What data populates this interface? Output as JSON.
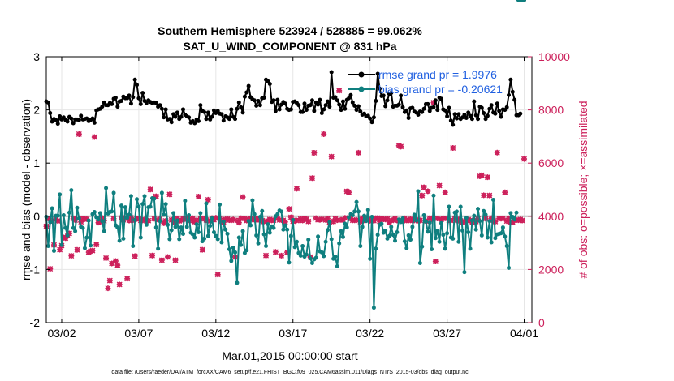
{
  "chart_data": {
    "type": "line",
    "title_line1": "Southern Hemisphere 523924 / 528885 = 99.062%",
    "title_line2": "SAT_U_WIND_COMPONENT @ 831 hPa",
    "xlabel": "Mar.01,2015 00:00:00 start",
    "ylabel_left": "rmse and bias (model - observation)",
    "ylabel_right": "# of obs: o=possible; ×=assimilated",
    "footnote": "data file: /Users/raeder/DAI/ATM_forcXX/CAM6_setup/f.e21.FHIST_BGC.f09_025.CAM6assim.011/Diags_NTrS_2015-03/obs_diag_output.nc",
    "xlim": [
      0,
      31.5
    ],
    "ylim_left": [
      -2,
      3
    ],
    "ylim_right": [
      0,
      10000
    ],
    "xticks": [
      {
        "x": 1.0,
        "label": "03/02"
      },
      {
        "x": 6.0,
        "label": "03/07"
      },
      {
        "x": 11.0,
        "label": "03/12"
      },
      {
        "x": 16.0,
        "label": "03/17"
      },
      {
        "x": 21.0,
        "label": "03/22"
      },
      {
        "x": 26.0,
        "label": "03/27"
      },
      {
        "x": 31.0,
        "label": "04/01"
      }
    ],
    "yticks_left": [
      {
        "v": -2,
        "label": "-2"
      },
      {
        "v": -1,
        "label": "-1"
      },
      {
        "v": 0,
        "label": "0"
      },
      {
        "v": 1,
        "label": "1"
      },
      {
        "v": 2,
        "label": "2"
      },
      {
        "v": 3,
        "label": "3"
      }
    ],
    "yticks_right": [
      {
        "v": 0,
        "label": "0"
      },
      {
        "v": 2000,
        "label": "2000"
      },
      {
        "v": 4000,
        "label": "4000"
      },
      {
        "v": 6000,
        "label": "6000"
      },
      {
        "v": 8000,
        "label": "8000"
      },
      {
        "v": 10000,
        "label": "10000"
      }
    ],
    "legend": [
      {
        "name": "rmse grand pr = 1.9976",
        "color": "#000000"
      },
      {
        "name": "bias grand pr = -0.20621",
        "color": "#0f7f7f"
      }
    ],
    "colors": {
      "rmse": "#000000",
      "bias": "#0f7f7f",
      "obs": "#cc1f5a",
      "zero_line": "#bbbbbb"
    },
    "x": [
      0.0,
      0.125,
      0.25,
      0.375,
      0.5,
      0.625,
      0.75,
      0.875,
      1.0,
      1.125,
      1.25,
      1.375,
      1.5,
      1.625,
      1.75,
      1.875,
      2.0,
      2.125,
      2.25,
      2.375,
      2.5,
      2.625,
      2.75,
      2.875,
      3.0,
      3.125,
      3.25,
      3.375,
      3.5,
      3.625,
      3.75,
      3.875,
      4.0,
      4.125,
      4.25,
      4.375,
      4.5,
      4.625,
      4.75,
      4.875,
      5.0,
      5.125,
      5.25,
      5.375,
      5.5,
      5.625,
      5.75,
      5.875,
      6.0,
      6.125,
      6.25,
      6.375,
      6.5,
      6.625,
      6.75,
      6.875,
      7.0,
      7.125,
      7.25,
      7.375,
      7.5,
      7.625,
      7.75,
      7.875,
      8.0,
      8.125,
      8.25,
      8.375,
      8.5,
      8.625,
      8.75,
      8.875,
      9.0,
      9.125,
      9.25,
      9.375,
      9.5,
      9.625,
      9.75,
      9.875,
      10.0,
      10.125,
      10.25,
      10.375,
      10.5,
      10.625,
      10.75,
      10.875,
      11.0,
      11.125,
      11.25,
      11.375,
      11.5,
      11.625,
      11.75,
      11.875,
      12.0,
      12.125,
      12.25,
      12.375,
      12.5,
      12.625,
      12.75,
      12.875,
      13.0,
      13.125,
      13.25,
      13.375,
      13.5,
      13.625,
      13.75,
      13.875,
      14.0,
      14.125,
      14.25,
      14.375,
      14.5,
      14.625,
      14.75,
      14.875,
      15.0,
      15.125,
      15.25,
      15.375,
      15.5,
      15.625,
      15.75,
      15.875,
      16.0,
      16.125,
      16.25,
      16.375,
      16.5,
      16.625,
      16.75,
      16.875,
      17.0,
      17.125,
      17.25,
      17.375,
      17.5,
      17.625,
      17.75,
      17.875,
      18.0,
      18.125,
      18.25,
      18.375,
      18.5,
      18.625,
      18.75,
      18.875,
      19.0,
      19.125,
      19.25,
      19.375,
      19.5,
      19.625,
      19.75,
      19.875,
      20.0,
      20.125,
      20.25,
      20.375,
      20.5,
      20.625,
      20.75,
      20.875,
      21.0,
      21.125,
      21.25,
      21.375,
      21.5,
      21.625,
      21.75,
      21.875,
      22.0,
      22.125,
      22.25,
      22.375,
      22.5,
      22.625,
      22.75,
      22.875,
      23.0,
      23.125,
      23.25,
      23.375,
      23.5,
      23.625,
      23.75,
      23.875,
      24.0,
      24.125,
      24.25,
      24.375,
      24.5,
      24.625,
      24.75,
      24.875,
      25.0,
      25.125,
      25.25,
      25.375,
      25.5,
      25.625,
      25.75,
      25.875,
      26.0,
      26.125,
      26.25,
      26.375,
      26.5,
      26.625,
      26.75,
      26.875,
      27.0,
      27.125,
      27.25,
      27.375,
      27.5,
      27.625,
      27.75,
      27.875,
      28.0,
      28.125,
      28.25,
      28.375,
      28.5,
      28.625,
      28.75,
      28.875,
      29.0,
      29.125,
      29.25,
      29.375,
      29.5,
      29.625,
      29.75,
      29.875,
      30.0,
      30.125,
      30.25,
      30.375,
      30.5,
      30.625,
      30.75,
      30.875,
      31.0
    ],
    "rmse": [
      2.16,
      2.14,
      1.94,
      1.78,
      1.83,
      1.81,
      1.74,
      1.88,
      1.82,
      1.86,
      1.81,
      1.78,
      1.87,
      1.84,
      1.75,
      1.82,
      1.82,
      1.81,
      1.89,
      1.82,
      1.83,
      1.84,
      1.79,
      1.81,
      1.84,
      1.76,
      1.99,
      2.01,
      2.02,
      2.06,
      2.14,
      2.09,
      2.09,
      2.13,
      2.11,
      2.21,
      2.23,
      2.06,
      2.16,
      2.17,
      2.25,
      2.22,
      2.22,
      2.27,
      2.12,
      2.24,
      2.57,
      2.47,
      2.22,
      2.11,
      2.32,
      2.17,
      2.13,
      2.18,
      2.15,
      2.13,
      2.14,
      2.13,
      2.06,
      2.09,
      2.02,
      1.86,
      2.01,
      1.82,
      1.83,
      1.77,
      1.92,
      1.87,
      1.95,
      1.83,
      1.87,
      2.01,
      1.91,
      1.88,
      1.86,
      1.76,
      1.79,
      1.75,
      1.82,
      1.79,
      2.09,
      1.98,
      1.96,
      1.83,
      1.95,
      1.82,
      1.87,
      1.99,
      1.94,
      1.98,
      1.93,
      1.92,
      1.8,
      1.88,
      1.86,
      1.83,
      2.01,
      1.87,
      1.83,
      2.02,
      2.14,
      2.05,
      1.95,
      2.25,
      2.33,
      2.45,
      2.24,
      2.2,
      2.18,
      2.08,
      2.17,
      2.09,
      2.22,
      2.23,
      2.57,
      2.54,
      2.49,
      2.15,
      2.18,
      1.98,
      2.19,
      2.01,
      2.1,
      2.15,
      2.12,
      2.02,
      2.0,
      2.01,
      2.15,
      2.16,
      2.13,
      2.09,
      1.96,
      1.96,
      2.12,
      2.0,
      2.08,
      2.09,
      2.18,
      1.98,
      2.14,
      2.1,
      2.19,
      1.94,
      2.01,
      2.09,
      2.16,
      2.06,
      2.71,
      2.23,
      2.24,
      2.18,
      2.1,
      2.0,
      2.16,
      2.02,
      2.19,
      2.22,
      2.28,
      2.14,
      2.08,
      2.0,
      2.07,
      1.97,
      1.91,
      1.93,
      1.88,
      1.89,
      1.84,
      1.77,
      1.86,
      2.17,
      2.68,
      2.4,
      2.26,
      2.27,
      2.07,
      2.18,
      2.3,
      2.32,
      2.06,
      2.08,
      2.08,
      2.1,
      2.27,
      2.05,
      1.96,
      1.99,
      1.85,
      2.03,
      2.04,
      1.97,
      1.95,
      1.91,
      1.97,
      1.96,
      2.02,
      2.11,
      2.11,
      1.98,
      2.04,
      2.05,
      2.18,
      2.0,
      2.23,
      2.21,
      2.01,
      1.99,
      1.88,
      2.04,
      1.8,
      1.72,
      1.92,
      1.84,
      1.92,
      1.83,
      1.86,
      1.91,
      1.85,
      1.95,
      1.89,
      1.83,
      2.16,
      1.9,
      1.83,
      2.06,
      2.04,
      1.94,
      1.83,
      1.89,
      2.02,
      2.09,
      1.95,
      1.93,
      2.12,
      1.98,
      1.87,
      2.01,
      2.0,
      2.05,
      2.28,
      2.57,
      2.34,
      2.19,
      1.9,
      1.9,
      1.93
    ],
    "bias": [
      -0.01,
      -0.56,
      -0.11,
      0.15,
      -0.65,
      0.01,
      0.01,
      0.41,
      -0.54,
      0.02,
      -0.22,
      -0.36,
      0.07,
      0.49,
      -0.22,
      -0.28,
      0.16,
      -0.04,
      -0.2,
      -0.22,
      -0.6,
      -0.4,
      -0.08,
      -0.55,
      0.04,
      0.08,
      -0.02,
      -0.06,
      0.06,
      -0.09,
      -0.28,
      0.53,
      0.05,
      0.08,
      0.09,
      0.44,
      -0.17,
      -0.21,
      -0.46,
      0.2,
      -0.42,
      0.17,
      -0.03,
      0.03,
      0.38,
      -0.56,
      -0.07,
      0.32,
      0.18,
      -0.4,
      0.23,
      0.38,
      -0.16,
      0.17,
      0.18,
      0.34,
      0.33,
      -0.21,
      -0.61,
      -0.09,
      0.44,
      0.03,
      0.23,
      -0.16,
      -0.43,
      -0.26,
      0.06,
      -0.2,
      -0.08,
      -0.43,
      -0.21,
      -0.33,
      0.29,
      -0.2,
      0.02,
      -0.31,
      -0.34,
      -0.4,
      -0.15,
      -0.3,
      0.06,
      -0.47,
      -0.42,
      0.24,
      -0.37,
      -0.18,
      -0.04,
      -0.3,
      -0.37,
      -0.43,
      0.22,
      -0.49,
      -0.1,
      -0.25,
      -0.33,
      -0.62,
      -0.84,
      -0.59,
      -0.68,
      -1.25,
      -0.4,
      -0.54,
      -0.28,
      -0.69,
      -0.64,
      -0.09,
      -0.17,
      0.3,
      0.04,
      -0.36,
      -0.51,
      -0.01,
      0.1,
      -0.34,
      -0.56,
      -0.15,
      -0.31,
      -0.19,
      -0.22,
      0.0,
      0.04,
      0.11,
      0.09,
      -0.25,
      -0.17,
      -0.25,
      -0.87,
      -0.37,
      -0.07,
      -0.58,
      -0.48,
      -0.69,
      -0.74,
      -0.56,
      -0.76,
      -0.72,
      -0.44,
      -0.79,
      -0.88,
      -0.81,
      -0.78,
      -0.38,
      -0.66,
      -0.68,
      -0.75,
      -0.48,
      -0.26,
      -0.11,
      -0.43,
      -0.8,
      -0.76,
      -0.94,
      -0.51,
      -0.28,
      -0.39,
      -0.14,
      -0.21,
      -0.02,
      0.04,
      0.02,
      0.09,
      0.27,
      0.09,
      -0.56,
      -0.2,
      0.01,
      -0.09,
      0.12,
      -0.8,
      -0.01,
      -1.72,
      -0.61,
      -0.35,
      -0.16,
      -0.14,
      -0.31,
      -0.27,
      -0.42,
      -0.37,
      -0.2,
      -0.35,
      -0.46,
      -0.3,
      -0.06,
      -0.11,
      -0.04,
      -0.47,
      -0.6,
      -0.36,
      -0.44,
      -0.2,
      0.03,
      -0.08,
      0.47,
      -0.88,
      -0.57,
      0.02,
      -0.1,
      -0.29,
      -0.12,
      -0.62,
      0.39,
      -0.41,
      -0.27,
      -0.48,
      -0.13,
      -0.35,
      -0.61,
      -0.32,
      0.18,
      -0.4,
      -0.42,
      0.07,
      0.09,
      -0.48,
      0.18,
      -0.27,
      -1.05,
      -0.03,
      -0.3,
      -0.61,
      -0.08,
      0.01,
      -0.25,
      0.14,
      -0.09,
      -0.36,
      0.1,
      0.03,
      -0.4,
      -0.09,
      -0.49,
      0.31,
      -0.41,
      -0.34,
      -0.33,
      -0.32,
      -0.21,
      -0.38,
      -0.56,
      -0.97,
      0.06,
      -0.01,
      -0.06,
      0.07
    ],
    "obs_possible": [
      3620,
      3917,
      2025,
      3828,
      2923,
      3888,
      3826,
      2743,
      2898,
      3200,
      3177,
      3282,
      3355,
      2513,
      3911,
      3856,
      2737,
      7090,
      3790,
      3908,
      3894,
      3895,
      2649,
      2683,
      2710,
      6980,
      2938,
      3760,
      3790,
      3938,
      3829,
      2427,
      1293,
      1582,
      2225,
      3909,
      2317,
      2161,
      1436,
      3942,
      3868,
      3925,
      1653,
      3839,
      3944,
      3856,
      2502,
      3897,
      3919,
      3845,
      3847,
      3877,
      3829,
      3835,
      5007,
      2524,
      3911,
      4753,
      3866,
      3899,
      2350,
      3738,
      3826,
      2470,
      4823,
      3861,
      3773,
      2350,
      3914,
      3825,
      3854,
      3911,
      3898,
      3894,
      3885,
      3846,
      3924,
      3792,
      3848,
      4741,
      3924,
      2740,
      3903,
      3858,
      4621,
      3822,
      3934,
      3868,
      3943,
      1809,
      3921,
      3823,
      3769,
      3881,
      3897,
      3855,
      3848,
      3878,
      2465,
      3840,
      3761,
      3924,
      4723,
      3911,
      3839,
      3878,
      3909,
      3898,
      3870,
      3908,
      3867,
      3917,
      3837,
      3804,
      2524,
      3829,
      3879,
      3845,
      3851,
      2659,
      3927,
      3863,
      2520,
      3847,
      3789,
      2646,
      4278,
      3961,
      3810,
      3840,
      5036,
      3847,
      3896,
      3840,
      3918,
      3893,
      3805,
      2467,
      5435,
      6389,
      3929,
      3868,
      3864,
      3889,
      7090,
      3860,
      3911,
      3774,
      6244,
      3808,
      3904,
      3852,
      8725,
      3867,
      3857,
      3940,
      4937,
      4903,
      3907,
      3849,
      3848,
      3860,
      6390,
      3797,
      3933,
      3848,
      3925,
      3878,
      3873,
      3823,
      3835,
      3920,
      3936,
      3808,
      3908,
      3888,
      3879,
      3900,
      3762,
      3839,
      3868,
      3923,
      3841,
      6655,
      6621,
      3831,
      3923,
      3845,
      3847,
      3891,
      3838,
      3869,
      3874,
      3834,
      3847,
      4780,
      5091,
      3815,
      4941,
      3930,
      3892,
      8276,
      2302,
      3916,
      5154,
      3884,
      3920,
      4901,
      3917,
      3855,
      3845,
      6570,
      3914,
      3846,
      3878,
      3828,
      3774,
      3804,
      3851,
      3874,
      3844,
      3761,
      3845,
      3800,
      3897,
      5504,
      5545,
      4791,
      3910,
      5469,
      4783,
      3930,
      3849,
      3799,
      6395,
      3918,
      3910,
      3922,
      4902,
      3820,
      3922,
      3763,
      3773,
      3854,
      3855,
      3852,
      3879,
      3842,
      6156,
      2859,
      2716,
      2736
    ],
    "obs_assimilated": [
      3620,
      3917,
      2025,
      3828,
      2923,
      3888,
      3826,
      2743,
      2898,
      3200,
      3177,
      3282,
      3355,
      2513,
      3911,
      3856,
      2737,
      7090,
      3790,
      3908,
      3894,
      3895,
      2649,
      2683,
      2710,
      6980,
      2938,
      3760,
      3790,
      3938,
      3829,
      2427,
      1293,
      1582,
      2225,
      3909,
      2317,
      2161,
      1436,
      3942,
      3868,
      3925,
      1653,
      3839,
      3944,
      3856,
      2502,
      3897,
      3919,
      3845,
      3847,
      3877,
      3829,
      3835,
      5007,
      2524,
      3911,
      4753,
      3866,
      3899,
      2350,
      3738,
      3826,
      2470,
      4823,
      3861,
      3773,
      2350,
      3914,
      3825,
      3854,
      3911,
      3898,
      3894,
      3885,
      3846,
      3924,
      3792,
      3848,
      4741,
      3924,
      2740,
      3903,
      3858,
      4621,
      3822,
      3934,
      3868,
      3943,
      1809,
      3921,
      3823,
      3769,
      3881,
      3897,
      3855,
      3848,
      3878,
      2465,
      3840,
      3761,
      3924,
      4723,
      3911,
      3839,
      3878,
      3909,
      3898,
      3870,
      3908,
      3867,
      3917,
      3837,
      3804,
      2524,
      3829,
      3879,
      3845,
      3851,
      2659,
      3927,
      3863,
      2520,
      3847,
      3789,
      2646,
      4278,
      3961,
      3810,
      3840,
      5036,
      3847,
      3896,
      3840,
      3918,
      3893,
      3805,
      2467,
      5435,
      6389,
      3929,
      3868,
      3864,
      3889,
      7090,
      3860,
      3911,
      3774,
      6244,
      3808,
      3904,
      3852,
      8725,
      3867,
      3857,
      3940,
      4937,
      4903,
      3907,
      3849,
      3848,
      3860,
      6390,
      3797,
      3933,
      3848,
      3925,
      3878,
      3873,
      3823,
      3835,
      3920,
      3936,
      3808,
      3908,
      3888,
      3879,
      3900,
      3762,
      3839,
      3868,
      3923,
      3841,
      6655,
      6621,
      3831,
      3923,
      3845,
      3847,
      3891,
      3838,
      3869,
      3874,
      3834,
      3847,
      4780,
      5091,
      3815,
      4941,
      3930,
      3892,
      8276,
      2302,
      3916,
      5154,
      3884,
      3920,
      4901,
      3917,
      3855,
      3845,
      6570,
      3914,
      3846,
      3878,
      3828,
      3774,
      3804,
      3851,
      3874,
      3844,
      3761,
      3845,
      3800,
      3897,
      5504,
      5545,
      4791,
      3910,
      5469,
      4783,
      3930,
      3849,
      3799,
      6395,
      3918,
      3910,
      3922,
      4902,
      3820,
      3922,
      3763,
      3773,
      3854,
      3855,
      3852,
      3879,
      3842,
      6156,
      2859,
      2716,
      2736
    ]
  }
}
